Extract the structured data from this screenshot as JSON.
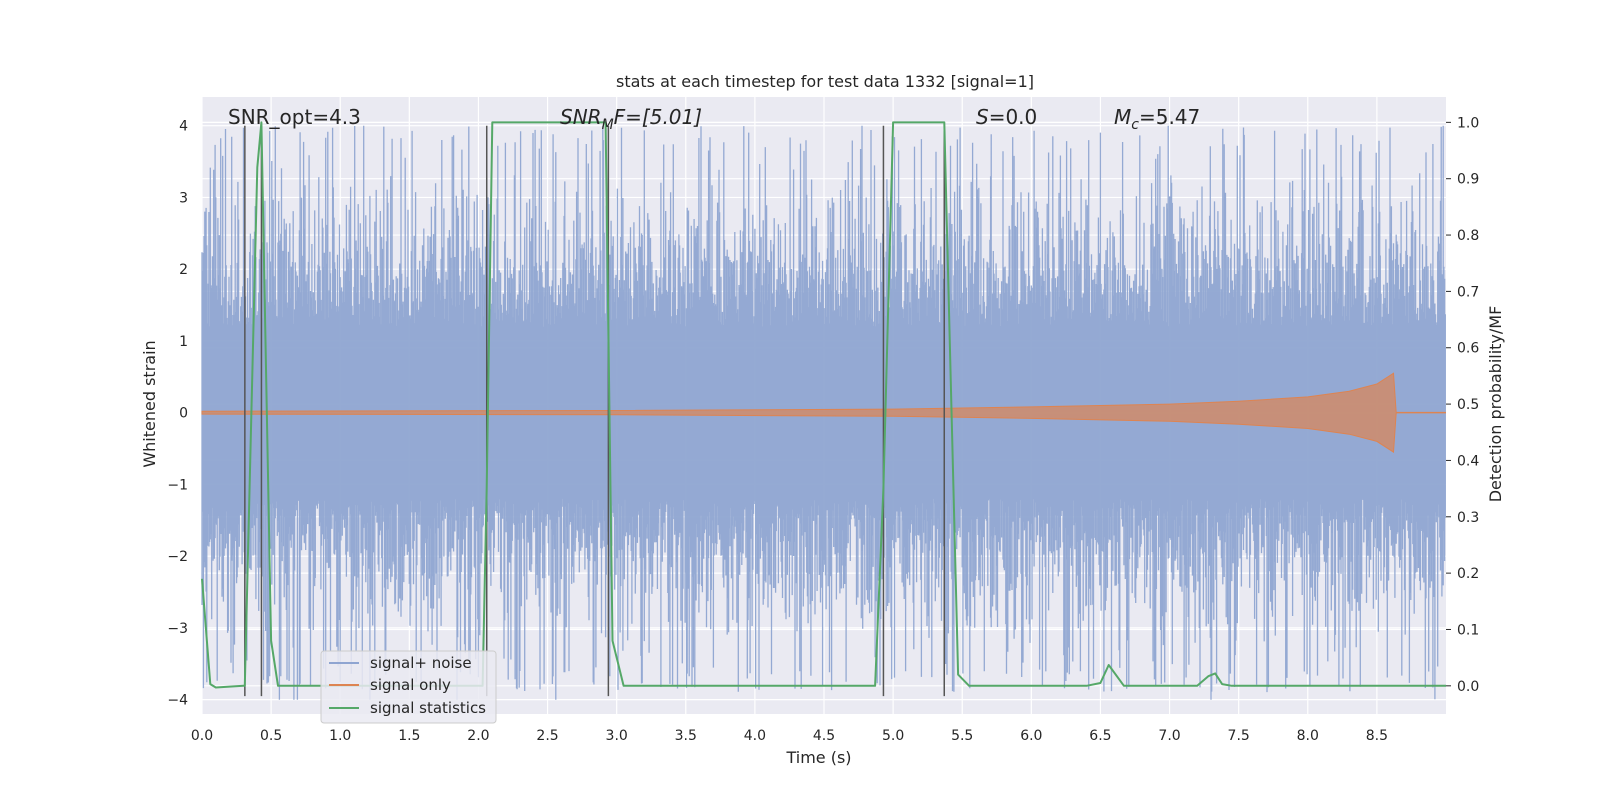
{
  "chart_data": {
    "type": "line",
    "title": "stats at each timestep for test data 1332 [signal=1]",
    "xlabel": "Time (s)",
    "ylabel": "Whitened strain",
    "y2label": "Detection probability/MF",
    "xlim": [
      0,
      9.0
    ],
    "ylim": [
      -4.2,
      4.4
    ],
    "y2lim": [
      -0.05,
      1.045
    ],
    "xticks": [
      "0.0",
      "0.5",
      "1.0",
      "1.5",
      "2.0",
      "2.5",
      "3.0",
      "3.5",
      "4.0",
      "4.5",
      "5.0",
      "5.5",
      "6.0",
      "6.5",
      "7.0",
      "7.5",
      "8.0",
      "8.5"
    ],
    "yticks": [
      "4",
      "3",
      "2",
      "1",
      "0",
      "−1",
      "−2",
      "−3",
      "−4"
    ],
    "y2ticks": [
      "1.0",
      "0.9",
      "0.8",
      "0.7",
      "0.6",
      "0.5",
      "0.4",
      "0.3",
      "0.2",
      "0.1",
      "0.0"
    ],
    "grid": true,
    "legend_position": "lower-left",
    "annotations": {
      "snr_opt": "SNR_opt=4.3",
      "snr_mf_main": "SNR",
      "snr_mf_sub": "M",
      "snr_mf_rest": "F=[5.01]",
      "s_main": "S",
      "s_rest": "=0.0",
      "mc_main": "M",
      "mc_sub": "c",
      "mc_rest": "=5.47"
    },
    "vertical_lines": [
      0.31,
      0.43,
      2.06,
      2.94,
      4.93,
      5.37
    ],
    "noise_envelope": [
      1.2,
      2.4,
      3.6,
      4.0
    ],
    "series": [
      {
        "name": "signal+ noise",
        "color": "#8fa5d1",
        "description_values": "whitened strain noise, amplitude about ±2.5 with peaks to ±4"
      },
      {
        "name": "signal only",
        "color": "#dd8452",
        "points": [
          [
            0.0,
            0.02
          ],
          [
            3.0,
            0.03
          ],
          [
            5.0,
            0.05
          ],
          [
            6.0,
            0.08
          ],
          [
            7.0,
            0.12
          ],
          [
            7.5,
            0.16
          ],
          [
            8.0,
            0.22
          ],
          [
            8.3,
            0.3
          ],
          [
            8.5,
            0.4
          ],
          [
            8.62,
            0.55
          ],
          [
            8.64,
            0.0
          ]
        ]
      },
      {
        "name": "signal statistics",
        "color": "#55a868",
        "points": [
          [
            0.0,
            0.19
          ],
          [
            0.06,
            0.003
          ],
          [
            0.1,
            -0.003
          ],
          [
            0.3,
            0.0
          ],
          [
            0.31,
            0.0
          ],
          [
            0.4,
            0.92
          ],
          [
            0.43,
            1.0
          ],
          [
            0.5,
            0.08
          ],
          [
            0.55,
            0.0
          ],
          [
            2.03,
            0.0
          ],
          [
            2.06,
            0.35
          ],
          [
            2.1,
            1.0
          ],
          [
            2.92,
            1.0
          ],
          [
            2.97,
            0.08
          ],
          [
            3.05,
            0.0
          ],
          [
            4.87,
            0.0
          ],
          [
            4.93,
            0.35
          ],
          [
            5.0,
            1.0
          ],
          [
            5.37,
            1.0
          ],
          [
            5.47,
            0.02
          ],
          [
            5.55,
            0.0
          ],
          [
            6.4,
            0.0
          ],
          [
            6.5,
            0.005
          ],
          [
            6.56,
            0.037
          ],
          [
            6.67,
            0.0
          ],
          [
            7.2,
            0.0
          ],
          [
            7.28,
            0.017
          ],
          [
            7.33,
            0.022
          ],
          [
            7.38,
            0.003
          ],
          [
            7.45,
            0.0
          ],
          [
            9.0,
            0.0
          ]
        ]
      }
    ]
  },
  "legend": {
    "items": [
      {
        "label": "signal+ noise",
        "color": "#8fa5d1"
      },
      {
        "label": "signal only",
        "color": "#dd8452"
      },
      {
        "label": "signal statistics",
        "color": "#55a868"
      }
    ]
  }
}
